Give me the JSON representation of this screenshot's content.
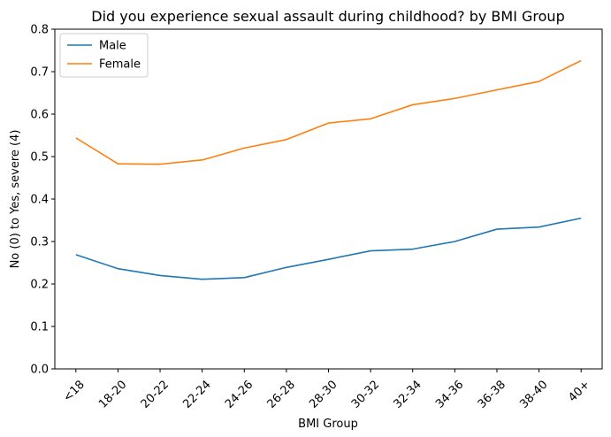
{
  "chart_data": {
    "type": "line",
    "title": "Did you experience sexual assault during childhood? by BMI Group",
    "xlabel": "BMI Group",
    "ylabel": "No (0) to Yes, severe (4)",
    "categories": [
      "<18",
      "18-20",
      "20-22",
      "22-24",
      "24-26",
      "26-28",
      "28-30",
      "30-32",
      "32-34",
      "34-36",
      "36-38",
      "38-40",
      "40+"
    ],
    "ylim": [
      0,
      0.8
    ],
    "yticks": [
      0.0,
      0.1,
      0.2,
      0.3,
      0.4,
      0.5,
      0.6,
      0.7,
      0.8
    ],
    "ytick_labels": [
      "0.0",
      "0.1",
      "0.2",
      "0.3",
      "0.4",
      "0.5",
      "0.6",
      "0.7",
      "0.8"
    ],
    "grid": false,
    "legend_position": "top-left",
    "series": [
      {
        "name": "Male",
        "color": "#1f77b4",
        "values": [
          0.269,
          0.236,
          0.22,
          0.211,
          0.215,
          0.239,
          0.258,
          0.278,
          0.282,
          0.3,
          0.329,
          0.334,
          0.355
        ]
      },
      {
        "name": "Female",
        "color": "#ff7f0e",
        "values": [
          0.544,
          0.483,
          0.482,
          0.492,
          0.52,
          0.54,
          0.579,
          0.589,
          0.622,
          0.637,
          0.657,
          0.677,
          0.726
        ]
      }
    ]
  }
}
